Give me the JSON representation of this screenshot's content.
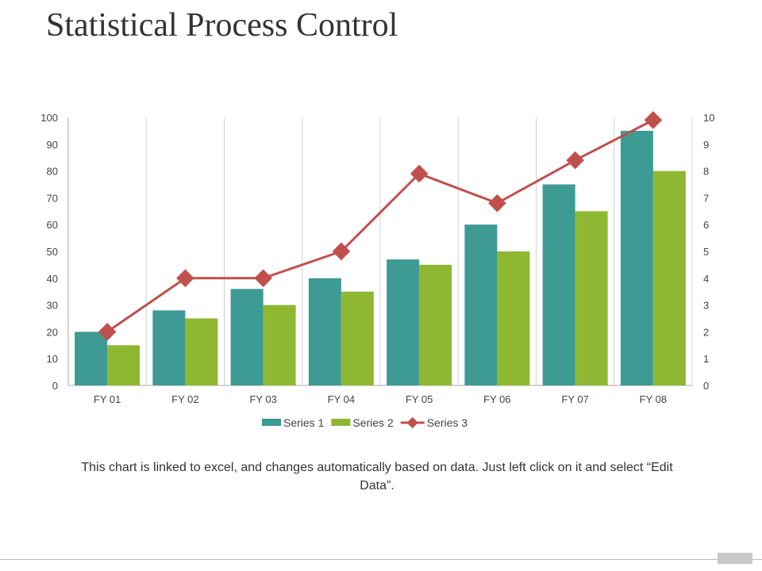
{
  "title": "Statistical Process Control",
  "note": "This chart is linked to excel, and changes automatically based on data. Just left click on it and select “Edit Data”.",
  "chart_data": {
    "type": "bar+line",
    "categories": [
      "FY 01",
      "FY 02",
      "FY 03",
      "FY 04",
      "FY 05",
      "FY 06",
      "FY 07",
      "FY 08"
    ],
    "series": [
      {
        "name": "Series 1",
        "type": "bar",
        "axis": "left",
        "color": "#3d9b93",
        "values": [
          20,
          28,
          36,
          40,
          47,
          60,
          75,
          95
        ]
      },
      {
        "name": "Series 2",
        "type": "bar",
        "axis": "left",
        "color": "#8fb832",
        "values": [
          15,
          25,
          30,
          35,
          45,
          50,
          65,
          80
        ]
      },
      {
        "name": "Series 3",
        "type": "line",
        "axis": "right",
        "color": "#c0504d",
        "marker": "diamond",
        "values": [
          2,
          4,
          4,
          5,
          7.9,
          6.8,
          8.4,
          9.9
        ]
      }
    ],
    "y_left": {
      "min": 0,
      "max": 100,
      "ticks": [
        "0",
        "10",
        "20",
        "30",
        "40",
        "50",
        "60",
        "70",
        "80",
        "90",
        "100"
      ]
    },
    "y_right": {
      "min": 0,
      "max": 10,
      "ticks": [
        "0",
        "1",
        "2",
        "3",
        "4",
        "5",
        "6",
        "7",
        "8",
        "9",
        "10"
      ]
    },
    "grid": "vertical",
    "legend": "bottom"
  }
}
